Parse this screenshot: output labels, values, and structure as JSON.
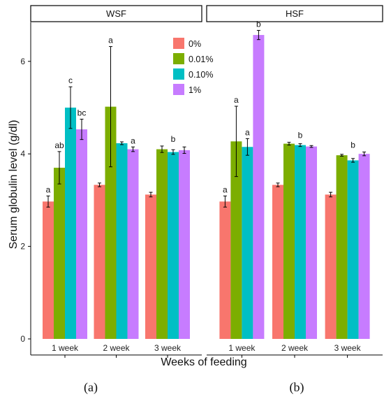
{
  "chart_data": {
    "type": "bar",
    "ylabel": "Serum globulin level (g/dl)",
    "xlabel": "Weeks of feeding",
    "ylim": [
      0,
      7
    ],
    "yticks": [
      0,
      2,
      4,
      6
    ],
    "categories": [
      "1 week",
      "2 week",
      "3 week"
    ],
    "legend": {
      "position": "top-right",
      "entries": [
        "0%",
        "0.01%",
        "0.10%",
        "1%"
      ]
    },
    "colors": [
      "#F8766D",
      "#7CAE00",
      "#00BFC4",
      "#C77CFF"
    ],
    "panels": [
      {
        "strip": "WSF",
        "label": "(a)",
        "series": [
          {
            "name": "0%",
            "values": [
              2.97,
              3.33,
              3.12
            ],
            "errors": [
              0.12,
              0.04,
              0.05
            ],
            "letters": [
              "a",
              "",
              ""
            ]
          },
          {
            "name": "0.01%",
            "values": [
              3.7,
              5.02,
              4.1
            ],
            "errors": [
              0.35,
              1.3,
              0.07
            ],
            "letters": [
              "ab",
              "a",
              ""
            ]
          },
          {
            "name": "0.10%",
            "values": [
              5.0,
              4.23,
              4.04
            ],
            "errors": [
              0.45,
              0.03,
              0.05
            ],
            "letters": [
              "c",
              "",
              ""
            ]
          },
          {
            "name": "1%",
            "values": [
              4.53,
              4.1,
              4.08
            ],
            "errors": [
              0.22,
              0.05,
              0.07
            ],
            "letters": [
              "bc",
              "",
              ""
            ]
          }
        ],
        "group_letters": [
          "",
          "a",
          "b"
        ]
      },
      {
        "strip": "HSF",
        "label": "(b)",
        "series": [
          {
            "name": "0%",
            "values": [
              2.97,
              3.33,
              3.12
            ],
            "errors": [
              0.12,
              0.04,
              0.05
            ],
            "letters": [
              "a",
              "",
              ""
            ]
          },
          {
            "name": "0.01%",
            "values": [
              4.27,
              4.22,
              3.97
            ],
            "errors": [
              0.76,
              0.03,
              0.02
            ],
            "letters": [
              "a",
              "",
              ""
            ]
          },
          {
            "name": "0.10%",
            "values": [
              4.15,
              4.19,
              3.86
            ],
            "errors": [
              0.18,
              0.03,
              0.04
            ],
            "letters": [
              "a",
              "",
              ""
            ]
          },
          {
            "name": "1%",
            "values": [
              6.57,
              4.16,
              4.0
            ],
            "errors": [
              0.1,
              0.02,
              0.04
            ],
            "letters": [
              "b",
              "",
              ""
            ]
          }
        ],
        "group_letters": [
          "",
          "b",
          "b"
        ]
      }
    ]
  }
}
